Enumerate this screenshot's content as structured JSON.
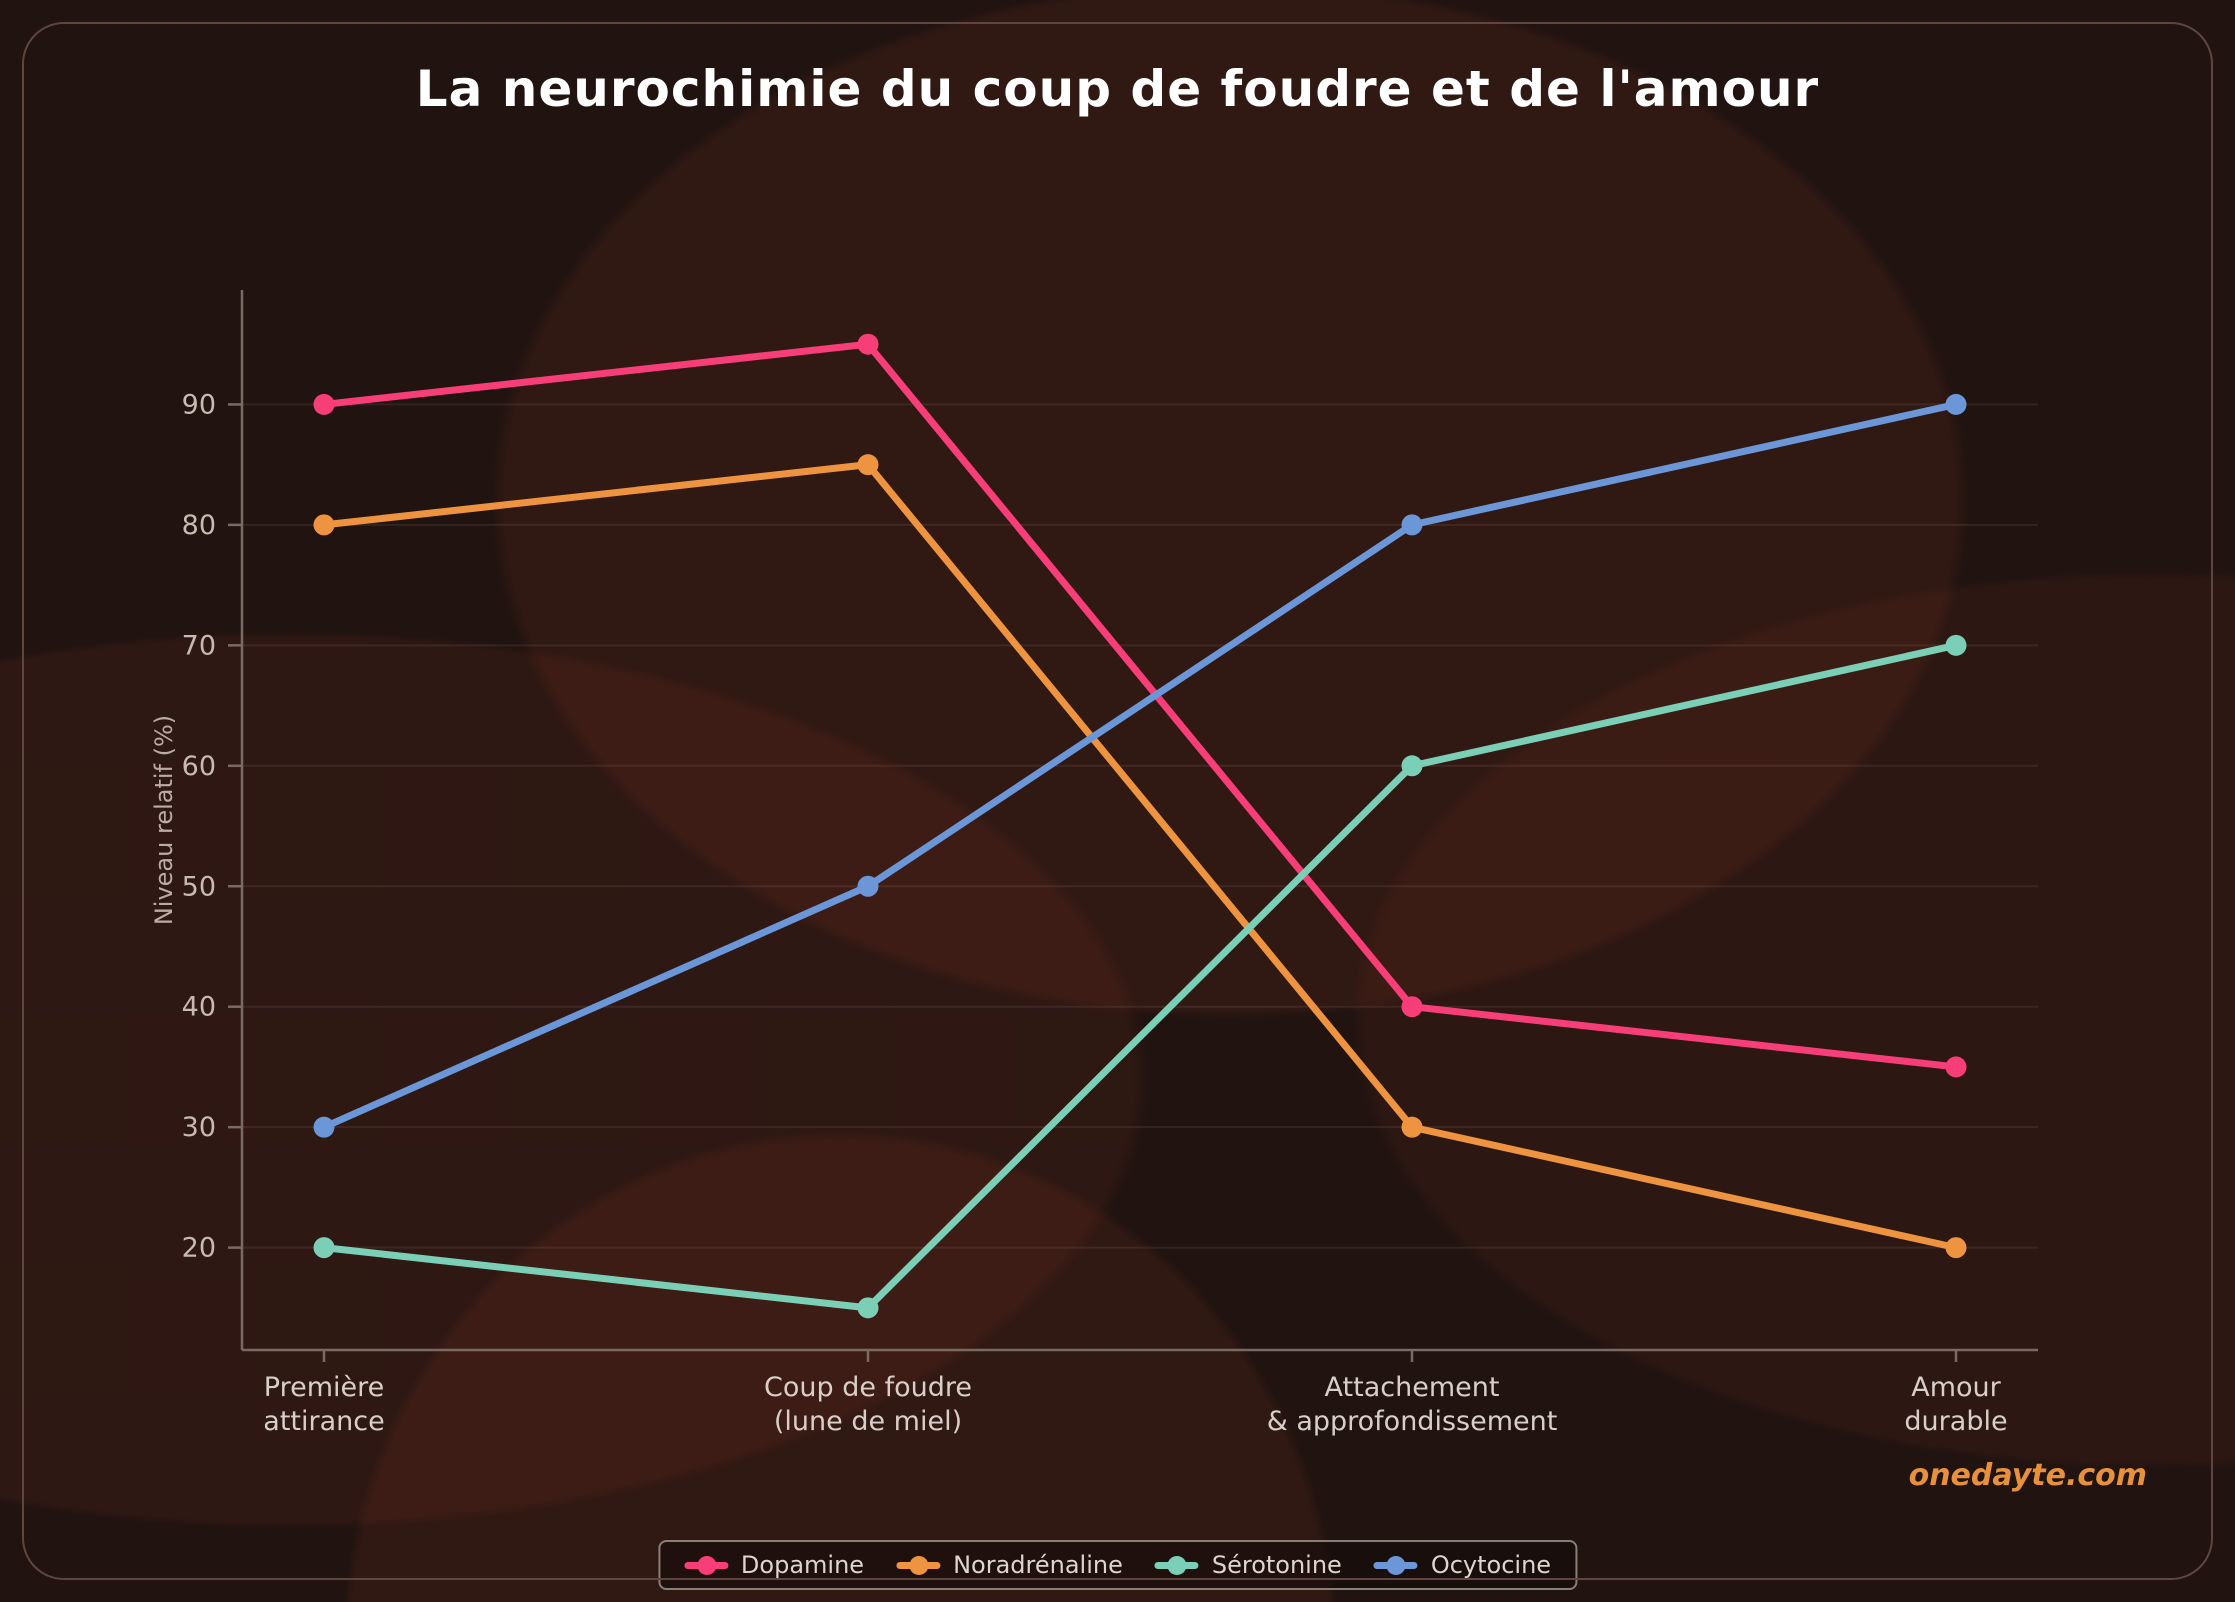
{
  "title": "La neurochimie du coup de foudre et de l'amour",
  "watermark": "onedayte.com",
  "colors": {
    "background": "#201310",
    "frame_border": "#5e463e",
    "axis": "#7a6b62",
    "grid": "rgba(216,184,164,0.10)",
    "y_tick_text": "#c6bab1",
    "x_tick_text": "#d8cfc8",
    "axis_label_text": "#b9aca3",
    "title_text": "#ffffff",
    "watermark_text": "#e8913c",
    "legend_border": "#8a7f77",
    "legend_text": "#ddd5ce"
  },
  "chart_data": {
    "type": "line",
    "title": "La neurochimie du coup de foudre et de l'amour",
    "xlabel": "",
    "ylabel": "Niveau relatif (%)",
    "categories": [
      "Première\nattirance",
      "Coup de foudre\n(lune de miel)",
      "Attachement\n& approfondissement",
      "Amour\ndurable"
    ],
    "series": [
      {
        "name": "Dopamine",
        "color": "#f83e78",
        "values": [
          90,
          95,
          40,
          35
        ]
      },
      {
        "name": "Noradrénaline",
        "color": "#ee9440",
        "values": [
          80,
          85,
          30,
          20
        ]
      },
      {
        "name": "Sérotonine",
        "color": "#7bcfb6",
        "values": [
          20,
          15,
          60,
          70
        ]
      },
      {
        "name": "Ocytocine",
        "color": "#6b97d9",
        "values": [
          30,
          50,
          80,
          90
        ]
      }
    ],
    "yticks": [
      20,
      30,
      40,
      50,
      60,
      70,
      80,
      90
    ],
    "ylim": [
      11.5,
      99.5
    ],
    "grid": true,
    "legend_position": "bottom"
  }
}
